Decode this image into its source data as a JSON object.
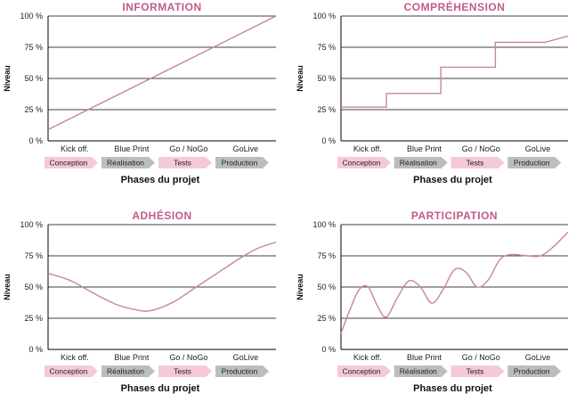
{
  "colors": {
    "line": "#c7849f",
    "title": "#c25a8a",
    "grid": "#000000",
    "arrow_pink": "#f6c9d7",
    "arrow_grey": "#bdbdbd"
  },
  "chart_data": [
    {
      "type": "line",
      "title": "INFORMATION",
      "xlabel": "Phases du projet",
      "ylabel": "Niveau",
      "ylim": [
        0,
        100
      ],
      "yticks": [
        "0 %",
        "25 %",
        "50 %",
        "75 %",
        "100 %"
      ],
      "milestones": [
        "Kick off.",
        "Blue Print",
        "Go / NoGo",
        "GoLive"
      ],
      "phases": [
        {
          "label": "Conception",
          "style": "pink"
        },
        {
          "label": "Réalisation",
          "style": "grey"
        },
        {
          "label": "Tests",
          "style": "pink"
        },
        {
          "label": "Production",
          "style": "grey"
        }
      ],
      "x": [
        0,
        100
      ],
      "y": [
        9,
        100
      ]
    },
    {
      "type": "line",
      "title": "COMPRÉHENSION",
      "xlabel": "Phases du projet",
      "ylabel": "Niveau",
      "ylim": [
        0,
        100
      ],
      "yticks": [
        "0 %",
        "25 %",
        "50 %",
        "75 %",
        "100 %"
      ],
      "milestones": [
        "Kick off.",
        "Blue Print",
        "Go / NoGo",
        "GoLive"
      ],
      "phases": [
        {
          "label": "Conception",
          "style": "pink"
        },
        {
          "label": "Réalisation",
          "style": "grey"
        },
        {
          "label": "Tests",
          "style": "pink"
        },
        {
          "label": "Production",
          "style": "grey"
        }
      ],
      "x": [
        0,
        20,
        20,
        44,
        44,
        68,
        68,
        90,
        100
      ],
      "y": [
        27,
        27,
        38,
        38,
        59,
        59,
        79,
        79,
        84
      ]
    },
    {
      "type": "line",
      "title": "ADHÉSION",
      "xlabel": "Phases du projet",
      "ylabel": "Niveau",
      "ylim": [
        0,
        100
      ],
      "yticks": [
        "0 %",
        "25 %",
        "50 %",
        "75 %",
        "100 %"
      ],
      "milestones": [
        "Kick off.",
        "Blue Print",
        "Go / NoGo",
        "GoLive"
      ],
      "phases": [
        {
          "label": "Conception",
          "style": "pink"
        },
        {
          "label": "Réalisation",
          "style": "grey"
        },
        {
          "label": "Tests",
          "style": "pink"
        },
        {
          "label": "Production",
          "style": "grey"
        }
      ],
      "x": [
        0,
        10,
        20,
        30,
        38,
        45,
        55,
        65,
        75,
        85,
        92,
        100
      ],
      "y": [
        61,
        55,
        45,
        36,
        32,
        31,
        38,
        50,
        62,
        74,
        81,
        86
      ]
    },
    {
      "type": "line",
      "title": "PARTICIPATION",
      "xlabel": "Phases du projet",
      "ylabel": "Niveau",
      "ylim": [
        0,
        100
      ],
      "yticks": [
        "0 %",
        "25 %",
        "50 %",
        "75 %",
        "100 %"
      ],
      "milestones": [
        "Kick off.",
        "Blue Print",
        "Go / NoGo",
        "GoLive"
      ],
      "phases": [
        {
          "label": "Conception",
          "style": "pink"
        },
        {
          "label": "Réalisation",
          "style": "grey"
        },
        {
          "label": "Tests",
          "style": "pink"
        },
        {
          "label": "Production",
          "style": "grey"
        }
      ],
      "x": [
        0,
        4,
        8,
        12,
        16,
        20,
        25,
        30,
        35,
        40,
        45,
        50,
        55,
        60,
        65,
        70,
        75,
        82,
        88,
        94,
        100
      ],
      "y": [
        13,
        32,
        48,
        50,
        35,
        26,
        42,
        55,
        50,
        37,
        48,
        64,
        62,
        50,
        56,
        72,
        76,
        75,
        75,
        83,
        94
      ]
    }
  ]
}
